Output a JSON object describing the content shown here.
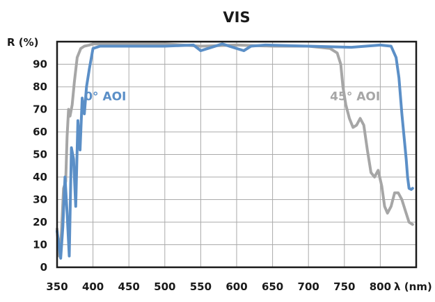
{
  "chart_data": {
    "type": "line",
    "title": "VIS",
    "ylabel": "R (%)",
    "xlabel": "λ (nm)",
    "xlim": [
      350,
      850
    ],
    "ylim": [
      0,
      100
    ],
    "xticks": [
      350,
      400,
      450,
      500,
      550,
      600,
      650,
      700,
      750,
      800
    ],
    "yticks": [
      0,
      10,
      20,
      30,
      40,
      50,
      60,
      70,
      80,
      90
    ],
    "grid": true,
    "colors": {
      "s0": "#5b8fc7",
      "s45": "#a6a6a6",
      "frame": "#1a1a1a",
      "grid": "#aaaaaa"
    },
    "series": [
      {
        "name": "0° AOI",
        "label_x": 388,
        "label_y": 74,
        "x": [
          350,
          355,
          358,
          361,
          364,
          367,
          370,
          373,
          376,
          379,
          382,
          385,
          388,
          391,
          395,
          400,
          410,
          450,
          500,
          540,
          550,
          560,
          580,
          600,
          610,
          620,
          640,
          700,
          760,
          800,
          815,
          822,
          826,
          828,
          830,
          833,
          836,
          838,
          840,
          843,
          845
        ],
        "y": [
          16,
          4,
          18,
          40,
          24,
          5,
          53,
          48,
          27,
          65,
          52,
          75,
          68,
          80,
          88,
          97,
          98,
          98,
          98,
          98.5,
          96,
          97,
          99,
          97,
          96,
          98,
          98.5,
          98,
          97.5,
          98.5,
          98,
          93,
          84,
          76,
          68,
          58,
          48,
          40,
          35,
          34.5,
          35
        ]
      },
      {
        "name": "45° AOI",
        "label_x": 730,
        "label_y": 74,
        "x": [
          350,
          353,
          356,
          359,
          362,
          364,
          366,
          368,
          371,
          374,
          378,
          383,
          388,
          395,
          400,
          420,
          500,
          550,
          600,
          650,
          700,
          730,
          740,
          745,
          748,
          752,
          757,
          762,
          767,
          772,
          777,
          782,
          787,
          792,
          797,
          802,
          806,
          810,
          815,
          820,
          825,
          830,
          835,
          840,
          845
        ],
        "y": [
          17,
          5,
          15,
          35,
          38,
          58,
          70,
          67,
          72,
          82,
          93,
          97,
          98,
          98.5,
          99,
          99,
          99,
          98,
          98.5,
          98,
          98,
          97,
          95,
          90,
          80,
          72,
          66,
          62,
          63,
          66,
          63,
          52,
          42,
          40,
          43,
          36,
          27,
          24,
          27,
          33,
          33,
          30,
          25,
          20,
          19
        ]
      }
    ]
  }
}
